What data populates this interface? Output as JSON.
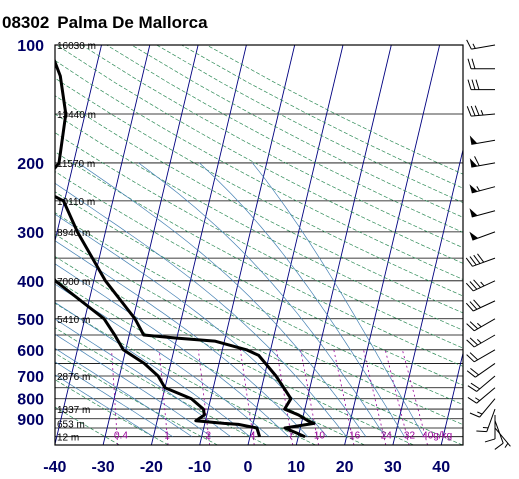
{
  "station": {
    "id": "08302",
    "name": "Palma De Mallorca"
  },
  "colors": {
    "frame": "#000000",
    "isobar": "#000000",
    "isotherm": "#000080",
    "dry_adiabat": "#2e8b57",
    "moist_adiabat": "#4682b4",
    "mixing_ratio": "#990099",
    "profile": "#000000",
    "axis_label": "#000066"
  },
  "chart_data": {
    "type": "line",
    "title": "08302  Palma De Mallorca",
    "xlabel": "",
    "ylabel": "",
    "pressure_scale": "log",
    "pressure_range_hpa": [
      1050,
      100
    ],
    "temperature_range_c": [
      -40,
      45
    ],
    "pressure_ticks": [
      100,
      200,
      300,
      400,
      500,
      600,
      700,
      800,
      900
    ],
    "temperature_ticks": [
      -40,
      -30,
      -20,
      -10,
      0,
      10,
      20,
      30,
      40
    ],
    "height_labels": [
      {
        "p": 100,
        "label": "16030 m"
      },
      {
        "p": 150,
        "label": "13440 m"
      },
      {
        "p": 200,
        "label": "11570 m"
      },
      {
        "p": 250,
        "label": "10110 m"
      },
      {
        "p": 300,
        "label": "8940 m"
      },
      {
        "p": 400,
        "label": "7000 m"
      },
      {
        "p": 500,
        "label": "5410 m"
      },
      {
        "p": 700,
        "label": "2876 m"
      },
      {
        "p": 850,
        "label": "1337 m"
      },
      {
        "p": 925,
        "label": "653 m"
      },
      {
        "p": 1000,
        "label": "12 m"
      }
    ],
    "mixing_ratio_labels": [
      {
        "w": 0.4,
        "label": "0.4"
      },
      {
        "w": 1,
        "label": "1"
      },
      {
        "w": 2,
        "label": "2"
      },
      {
        "w": 4,
        "label": "4"
      },
      {
        "w": 7,
        "label": "7"
      },
      {
        "w": 10,
        "label": "10"
      },
      {
        "w": 16,
        "label": "16"
      },
      {
        "w": 24,
        "label": "24"
      },
      {
        "w": 32,
        "label": "32"
      },
      {
        "w": 40,
        "label": "40g/kg"
      }
    ],
    "series": [
      {
        "role": "temperature",
        "points": [
          [
            1000,
            11.4
          ],
          [
            980,
            9.6
          ],
          [
            950,
            6.8
          ],
          [
            925,
            12.6
          ],
          [
            910,
            11.2
          ],
          [
            880,
            9.0
          ],
          [
            850,
            5.8
          ],
          [
            800,
            6.6
          ],
          [
            760,
            5.0
          ],
          [
            700,
            2.4
          ],
          [
            620,
            -2.2
          ],
          [
            600,
            -5.0
          ],
          [
            570,
            -12.0
          ],
          [
            560,
            -20.0
          ],
          [
            550,
            -27.0
          ],
          [
            500,
            -29.6
          ],
          [
            400,
            -37.6
          ],
          [
            300,
            -45.8
          ],
          [
            250,
            -50.2
          ],
          [
            232,
            -56.0
          ],
          [
            200,
            -53.0
          ],
          [
            150,
            -54.0
          ],
          [
            120,
            -57.0
          ],
          [
            100,
            -61.0
          ]
        ]
      },
      {
        "role": "dewpoint",
        "points": [
          [
            1000,
            2.0
          ],
          [
            950,
            1.0
          ],
          [
            930,
            -3.0
          ],
          [
            925,
            -6.0
          ],
          [
            910,
            -12.0
          ],
          [
            880,
            -10.5
          ],
          [
            850,
            -11.0
          ],
          [
            800,
            -14.0
          ],
          [
            750,
            -20.0
          ],
          [
            700,
            -22.0
          ],
          [
            650,
            -25.5
          ],
          [
            600,
            -30.5
          ],
          [
            550,
            -33.0
          ],
          [
            500,
            -36.0
          ],
          [
            400,
            -48.0
          ],
          [
            300,
            -56.0
          ],
          [
            250,
            -62.5
          ],
          [
            230,
            -62.0
          ],
          [
            200,
            -67.0
          ],
          [
            150,
            -74.0
          ],
          [
            120,
            -77.0
          ],
          [
            100,
            -82.0
          ]
        ]
      }
    ],
    "wind_barbs": [
      {
        "p": 100,
        "dir": 260,
        "speed_kt": 15
      },
      {
        "p": 115,
        "dir": 270,
        "speed_kt": 20
      },
      {
        "p": 130,
        "dir": 270,
        "speed_kt": 30
      },
      {
        "p": 150,
        "dir": 265,
        "speed_kt": 35
      },
      {
        "p": 175,
        "dir": 260,
        "speed_kt": 50
      },
      {
        "p": 200,
        "dir": 260,
        "speed_kt": 60
      },
      {
        "p": 230,
        "dir": 255,
        "speed_kt": 55
      },
      {
        "p": 265,
        "dir": 255,
        "speed_kt": 50
      },
      {
        "p": 300,
        "dir": 250,
        "speed_kt": 50
      },
      {
        "p": 350,
        "dir": 250,
        "speed_kt": 40
      },
      {
        "p": 400,
        "dir": 245,
        "speed_kt": 35
      },
      {
        "p": 450,
        "dir": 245,
        "speed_kt": 30
      },
      {
        "p": 500,
        "dir": 240,
        "speed_kt": 25
      },
      {
        "p": 550,
        "dir": 240,
        "speed_kt": 25
      },
      {
        "p": 600,
        "dir": 240,
        "speed_kt": 20
      },
      {
        "p": 650,
        "dir": 235,
        "speed_kt": 20
      },
      {
        "p": 700,
        "dir": 230,
        "speed_kt": 20
      },
      {
        "p": 750,
        "dir": 230,
        "speed_kt": 15
      },
      {
        "p": 800,
        "dir": 220,
        "speed_kt": 15
      },
      {
        "p": 850,
        "dir": 200,
        "speed_kt": 15
      },
      {
        "p": 880,
        "dir": 180,
        "speed_kt": 10
      },
      {
        "p": 910,
        "dir": 160,
        "speed_kt": 10
      },
      {
        "p": 950,
        "dir": 140,
        "speed_kt": 5
      }
    ]
  }
}
